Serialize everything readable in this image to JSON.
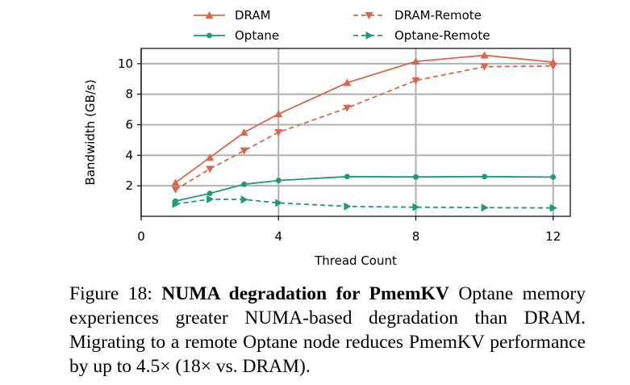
{
  "chart_data": {
    "type": "line",
    "xlabel": "Thread Count",
    "ylabel": "Bandwidth (GB/s)",
    "xlim": [
      0,
      12.5
    ],
    "ylim": [
      0,
      11
    ],
    "xticks": [
      0,
      4,
      8,
      12
    ],
    "yticks": [
      2,
      4,
      6,
      8,
      10
    ],
    "grid": true,
    "legend_position": "top, above plot, two columns",
    "series": [
      {
        "name": "DRAM",
        "color": "#d9674e",
        "style": "solid",
        "marker": "triangle-up",
        "x": [
          1,
          2,
          3,
          4,
          6,
          8,
          10,
          12
        ],
        "y": [
          2.2,
          3.85,
          5.5,
          6.7,
          8.75,
          10.15,
          10.55,
          10.1
        ]
      },
      {
        "name": "DRAM-Remote",
        "color": "#d9674e",
        "style": "dashed",
        "marker": "triangle-down",
        "x": [
          1,
          2,
          3,
          4,
          6,
          8,
          10,
          12
        ],
        "y": [
          1.75,
          3.1,
          4.3,
          5.5,
          7.1,
          8.9,
          9.8,
          9.85
        ]
      },
      {
        "name": "Optane",
        "color": "#1f9a74",
        "style": "solid",
        "marker": "circle",
        "x": [
          1,
          2,
          3,
          4,
          6,
          8,
          10,
          12
        ],
        "y": [
          1.0,
          1.5,
          2.1,
          2.35,
          2.6,
          2.58,
          2.6,
          2.57
        ]
      },
      {
        "name": "Optane-Remote",
        "color": "#1f9a74",
        "style": "dashed",
        "marker": "triangle-right",
        "x": [
          1,
          2,
          3,
          4,
          6,
          8,
          10,
          12
        ],
        "y": [
          0.8,
          1.12,
          1.1,
          0.88,
          0.65,
          0.6,
          0.57,
          0.55
        ]
      }
    ]
  },
  "caption": {
    "prefix": "Figure 18: ",
    "title": "NUMA degradation for PmemKV",
    "body": " Optane memory experiences greater NUMA-based degradation than DRAM. Migrating to a remote Optane node reduces PmemKV performance by up to 4.5× (18× vs. DRAM)."
  }
}
